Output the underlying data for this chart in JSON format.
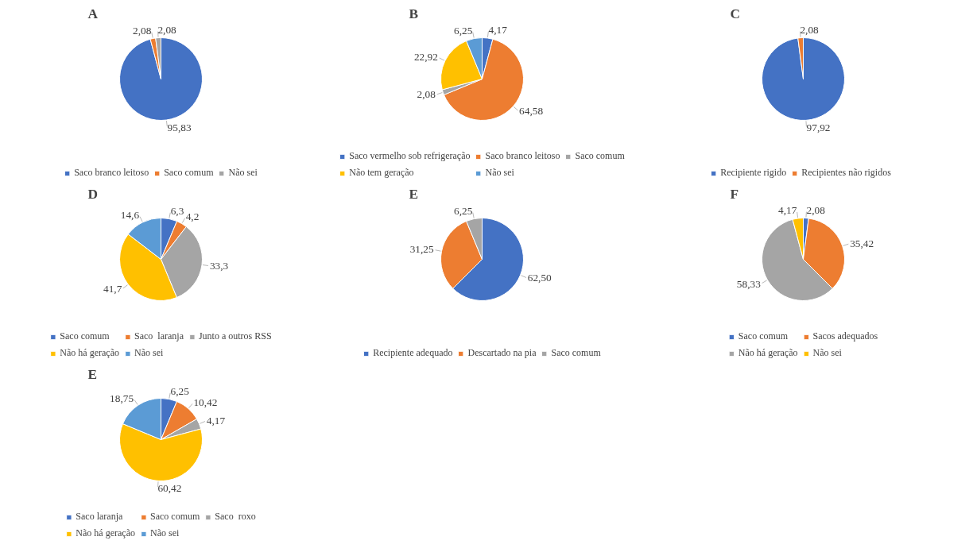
{
  "chart_data": [
    {
      "type": "pie",
      "title": "A",
      "categories": [
        "Saco branco leitoso",
        "Saco comum",
        "Não sei"
      ],
      "values": [
        95.83,
        2.08,
        2.08
      ],
      "value_labels": [
        "95,83",
        "2,08",
        "2,08"
      ],
      "colors": [
        "#4472c4",
        "#ed7d31",
        "#a5a5a5"
      ],
      "legend": "bottom"
    },
    {
      "type": "pie",
      "title": "B",
      "categories": [
        "Saco vermelho sob refrigeração",
        "Saco branco leitoso",
        "Saco comum",
        "Não tem geração",
        "Não sei"
      ],
      "values": [
        4.17,
        64.58,
        2.08,
        22.92,
        6.25
      ],
      "value_labels": [
        "4,17",
        "64,58",
        "2,08",
        "22,92",
        "6,25"
      ],
      "colors": [
        "#4472c4",
        "#ed7d31",
        "#a5a5a5",
        "#ffc000",
        "#5b9bd5"
      ],
      "legend": "bottom"
    },
    {
      "type": "pie",
      "title": "C",
      "categories": [
        "Recipiente rigido",
        "Recipientes não rigidos"
      ],
      "values": [
        97.92,
        2.08
      ],
      "value_labels": [
        "97,92",
        "2,08"
      ],
      "colors": [
        "#4472c4",
        "#ed7d31"
      ],
      "legend": "bottom"
    },
    {
      "type": "pie",
      "title": "D",
      "categories": [
        "Saco comum",
        "Saco  laranja",
        "Junto a outros RSS",
        "Não há geração",
        "Não sei"
      ],
      "values": [
        6.3,
        4.2,
        33.3,
        41.7,
        14.6
      ],
      "value_labels": [
        "6,3",
        "4,2",
        "33,3",
        "41,7",
        "14,6"
      ],
      "colors": [
        "#4472c4",
        "#ed7d31",
        "#a5a5a5",
        "#ffc000",
        "#5b9bd5"
      ],
      "legend": "bottom"
    },
    {
      "type": "pie",
      "title": "E",
      "categories": [
        "Recipiente adequado",
        "Descartado na pia",
        "Saco comum"
      ],
      "values": [
        62.5,
        31.25,
        6.25
      ],
      "value_labels": [
        "62,50",
        "31,25",
        "6,25"
      ],
      "colors": [
        "#4472c4",
        "#ed7d31",
        "#a5a5a5"
      ],
      "legend": "bottom"
    },
    {
      "type": "pie",
      "title": "F",
      "categories": [
        "Saco comum",
        "Sacos adequados",
        "Não há geração",
        "Não sei"
      ],
      "values": [
        2.08,
        35.42,
        58.33,
        4.17
      ],
      "value_labels": [
        "2,08",
        "35,42",
        "58,33",
        "4,17"
      ],
      "colors": [
        "#4472c4",
        "#ed7d31",
        "#a5a5a5",
        "#ffc000"
      ],
      "legend": "bottom"
    },
    {
      "type": "pie",
      "title": "E",
      "categories": [
        "Saco laranja",
        "Saco comum",
        "Saco  roxo",
        "Não há geração",
        "Não sei"
      ],
      "values": [
        6.25,
        10.42,
        4.17,
        60.42,
        18.75
      ],
      "value_labels": [
        "6,25",
        "10,42",
        "4,17",
        "60,42",
        "18,75"
      ],
      "colors": [
        "#4472c4",
        "#ed7d31",
        "#a5a5a5",
        "#ffc000",
        "#5b9bd5"
      ],
      "legend": "bottom"
    }
  ]
}
